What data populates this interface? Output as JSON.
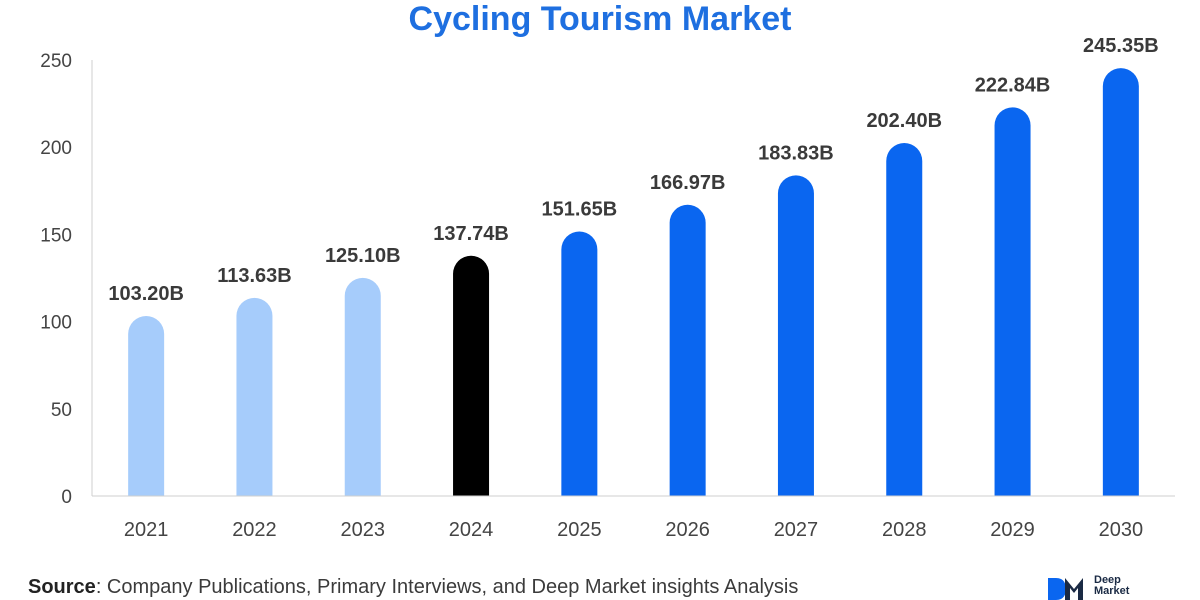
{
  "chart_data": {
    "type": "bar",
    "title": "Cycling Tourism Market",
    "categories": [
      "2021",
      "2022",
      "2023",
      "2024",
      "2025",
      "2026",
      "2027",
      "2028",
      "2029",
      "2030"
    ],
    "values": [
      103.2,
      113.63,
      125.1,
      137.74,
      151.65,
      166.97,
      183.83,
      202.4,
      222.84,
      245.35
    ],
    "data_labels": [
      "103.20B",
      "113.63B",
      "125.10B",
      "137.74B",
      "151.65B",
      "166.97B",
      "183.83B",
      "202.40B",
      "222.84B",
      "245.35B"
    ],
    "bar_colors": [
      "#a6ccfb",
      "#a6ccfb",
      "#a6ccfb",
      "#000000",
      "#0a66f0",
      "#0a66f0",
      "#0a66f0",
      "#0a66f0",
      "#0a66f0",
      "#0a66f0"
    ],
    "ylim": [
      0,
      250
    ],
    "yticks": [
      0,
      50,
      100,
      150,
      200,
      250
    ],
    "xlabel": "",
    "ylabel": "",
    "grid": false,
    "title_color": "#1e6fe0"
  },
  "source": {
    "label": "Source",
    "text": ": Company Publications, Primary Interviews, and Deep Market insights Analysis"
  },
  "logo": {
    "line1": "Deep",
    "line2": "Market"
  }
}
